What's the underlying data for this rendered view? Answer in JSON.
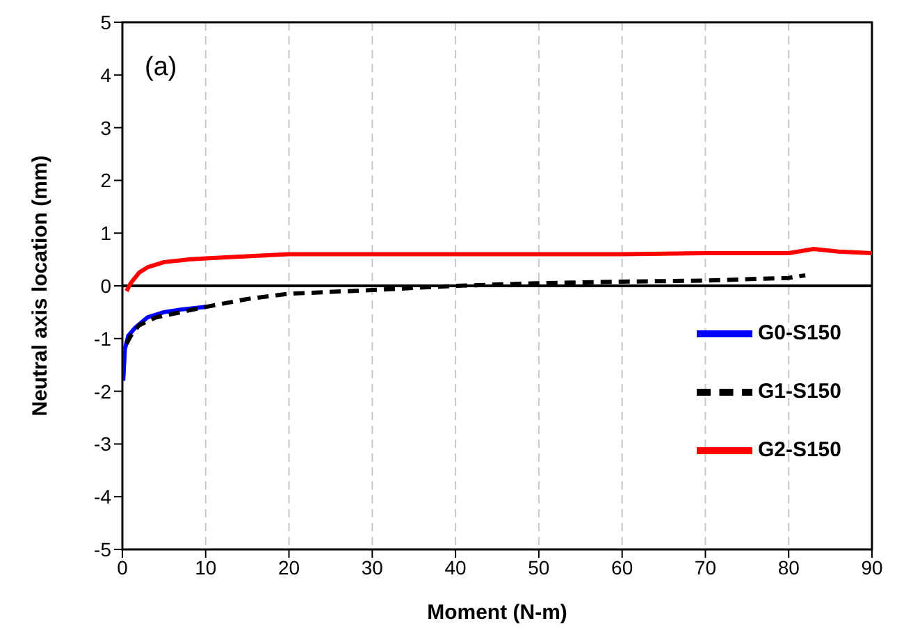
{
  "chart_data": {
    "type": "line",
    "xlabel": "Moment (N-m)",
    "ylabel": "Neutral axis location (mm)",
    "annotations": [
      "(a)"
    ],
    "xlim": [
      0,
      90
    ],
    "xticks": [
      0,
      10,
      20,
      30,
      40,
      50,
      60,
      70,
      80,
      90
    ],
    "ylim": [
      -5,
      5
    ],
    "yticks": [
      -5,
      -4,
      -3,
      -2,
      -1,
      0,
      1,
      2,
      3,
      4,
      5
    ],
    "grid": "x",
    "legend": "bottom right",
    "marker": "none",
    "ref_lines": [
      {
        "axis": "y",
        "value": 0,
        "color": "#000000"
      }
    ],
    "series": [
      {
        "name": "G0-S150",
        "color": "#0000ff",
        "line_style": "solid",
        "x": [
          0.1,
          0.3,
          0.7,
          1.5,
          3,
          5,
          7,
          10
        ],
        "values": [
          -1.8,
          -1.2,
          -0.95,
          -0.8,
          -0.6,
          -0.5,
          -0.45,
          -0.4
        ]
      },
      {
        "name": "G1-S150",
        "color": "#000000",
        "line_style": "dashed",
        "x": [
          0.5,
          1,
          2,
          4,
          7,
          10,
          15,
          20,
          30,
          40,
          50,
          60,
          70,
          80,
          82
        ],
        "values": [
          -1.1,
          -0.95,
          -0.75,
          -0.6,
          -0.5,
          -0.4,
          -0.25,
          -0.15,
          -0.08,
          0,
          0.05,
          0.08,
          0.1,
          0.15,
          0.2
        ]
      },
      {
        "name": "G2-S150",
        "color": "#ff0000",
        "line_style": "solid",
        "x": [
          0.5,
          1,
          2,
          3,
          5,
          8,
          10,
          20,
          40,
          60,
          70,
          80,
          83,
          86,
          90
        ],
        "values": [
          -0.1,
          0.05,
          0.25,
          0.35,
          0.45,
          0.5,
          0.52,
          0.6,
          0.6,
          0.6,
          0.62,
          0.62,
          0.7,
          0.65,
          0.62
        ]
      }
    ]
  }
}
